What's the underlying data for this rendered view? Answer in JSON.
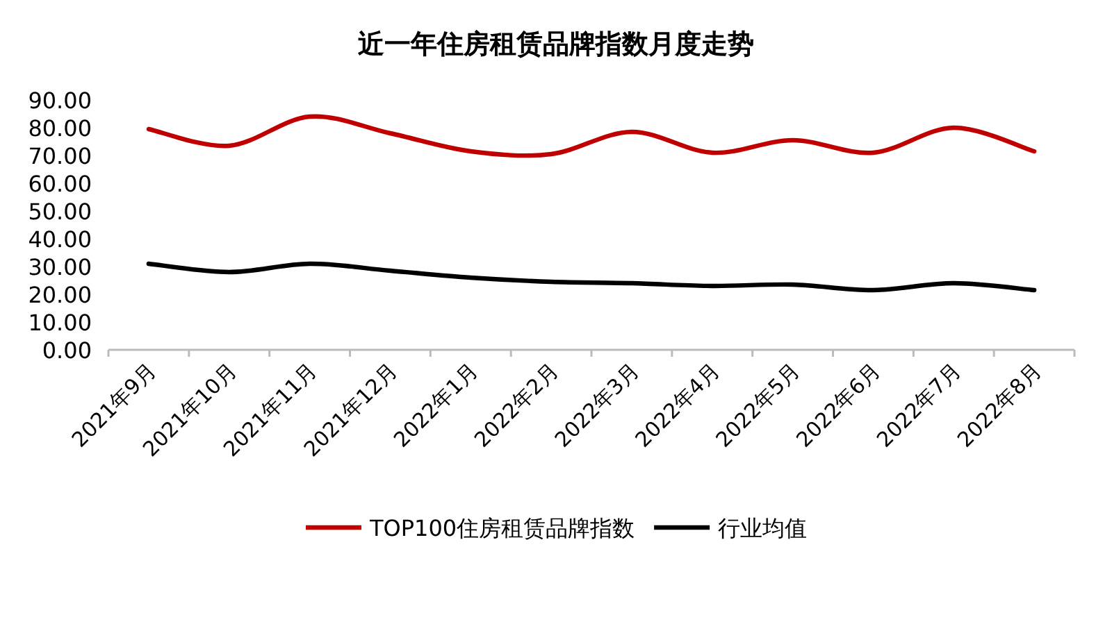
{
  "chart_data": {
    "type": "line",
    "title": "近一年住房租赁品牌指数月度走势",
    "categories": [
      "2021年9月",
      "2021年10月",
      "2021年11月",
      "2021年12月",
      "2022年1月",
      "2022年2月",
      "2022年3月",
      "2022年4月",
      "2022年5月",
      "2022年6月",
      "2022年7月",
      "2022年8月"
    ],
    "series": [
      {
        "name": "TOP100住房租赁品牌指数",
        "color": "#c00000",
        "values": [
          79.5,
          73.5,
          84,
          78,
          71.5,
          70.5,
          78.5,
          71,
          75.5,
          71,
          80,
          71.5
        ]
      },
      {
        "name": "行业均值",
        "color": "#000000",
        "values": [
          31,
          28,
          31,
          28.5,
          26,
          24.5,
          24,
          23,
          23.5,
          21.5,
          24,
          21.5
        ]
      }
    ],
    "ylim": [
      0,
      90
    ],
    "yticks": [
      {
        "value": 0,
        "label": "0.00"
      },
      {
        "value": 10,
        "label": "10.00"
      },
      {
        "value": 20,
        "label": "20.00"
      },
      {
        "value": 30,
        "label": "30.00"
      },
      {
        "value": 40,
        "label": "40.00"
      },
      {
        "value": 50,
        "label": "50.00"
      },
      {
        "value": 60,
        "label": "60.00"
      },
      {
        "value": 70,
        "label": "70.00"
      },
      {
        "value": 80,
        "label": "80.00"
      },
      {
        "value": 90,
        "label": "90.00"
      }
    ],
    "legend": "bottom",
    "grid": false,
    "marker": "none",
    "line_style": "solid"
  }
}
